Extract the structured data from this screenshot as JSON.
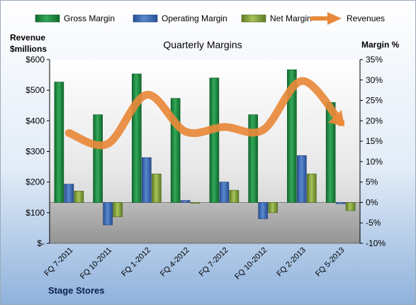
{
  "chart_data": {
    "type": "bar",
    "title": "Quarterly Margins",
    "left_axis_title": [
      "Revenue",
      "$millions"
    ],
    "right_axis_title": "Margin %",
    "footer_label": "Stage Stores",
    "legend_position": "top",
    "categories": [
      "FQ 7-2011",
      "FQ 10-2011",
      "FQ 1-2012",
      "FQ 4-2012",
      "FQ 7-2012",
      "FQ 10-2012",
      "FQ 2-2013",
      "FQ 5-2013"
    ],
    "left_axis": {
      "min": 0,
      "max": 600,
      "step": 100,
      "tick_labels": [
        "$-",
        "$100",
        "$200",
        "$300",
        "$400",
        "$500",
        "$600"
      ]
    },
    "right_axis": {
      "min": -10,
      "max": 35,
      "step": 5,
      "tick_labels": [
        "-10%",
        "-5%",
        "0%",
        "5%",
        "10%",
        "15%",
        "20%",
        "25%",
        "30%",
        "35%"
      ]
    },
    "series": [
      {
        "name": "Gross Margin",
        "kind": "bar",
        "axis": "right",
        "color": "#1f8a43",
        "values": [
          29.5,
          21.5,
          31.5,
          25.5,
          30.5,
          21.5,
          32.5,
          24.5
        ]
      },
      {
        "name": "Operating Margin",
        "kind": "bar",
        "axis": "right",
        "color": "#3f6fb9",
        "values": [
          4.5,
          -5.5,
          11,
          0.5,
          5,
          -4,
          11.5,
          -0.3
        ]
      },
      {
        "name": "Net Margin",
        "kind": "bar",
        "axis": "right",
        "color": "#86a83c",
        "values": [
          2.8,
          -3.5,
          7,
          -0.2,
          3,
          -2.5,
          7,
          -2
        ]
      },
      {
        "name": "Revenues",
        "kind": "line",
        "axis": "left",
        "color": "#e8893a",
        "values": [
          360,
          325,
          485,
          365,
          380,
          370,
          530,
          395
        ]
      }
    ]
  }
}
